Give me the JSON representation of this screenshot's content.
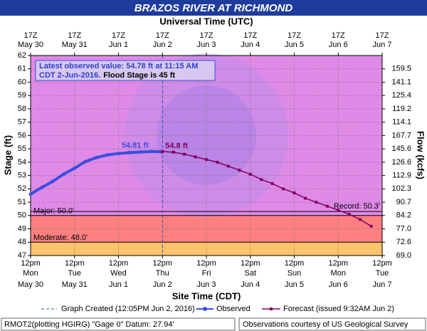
{
  "chart_data": {
    "type": "line",
    "title": "BRAZOS RIVER AT RICHMOND",
    "top_axis_title": "Universal Time (UTC)",
    "x_title": "Site Time (CDT)",
    "y_title": "Stage (ft)",
    "y2_title": "Flow (kcfs)",
    "xlim": [
      "2016-05-30T12:00",
      "2016-06-07T12:00"
    ],
    "xticks": [
      {
        "value": "2016-05-30T12:00",
        "label": "12pm",
        "day": "Mon",
        "date": "May 30",
        "utc": "17Z"
      },
      {
        "value": "2016-05-31T12:00",
        "label": "12pm",
        "day": "Tue",
        "date": "May 31",
        "utc": "17Z"
      },
      {
        "value": "2016-06-01T12:00",
        "label": "12pm",
        "day": "Wed",
        "date": "Jun 1",
        "utc": "17Z"
      },
      {
        "value": "2016-06-02T12:00",
        "label": "12pm",
        "day": "Thu",
        "date": "Jun 2",
        "utc": "17Z"
      },
      {
        "value": "2016-06-03T12:00",
        "label": "12pm",
        "day": "Fri",
        "date": "Jun 3",
        "utc": "17Z"
      },
      {
        "value": "2016-06-04T12:00",
        "label": "12pm",
        "day": "Sat",
        "date": "Jun 4",
        "utc": "17Z"
      },
      {
        "value": "2016-06-05T12:00",
        "label": "12pm",
        "day": "Sun",
        "date": "Jun 5",
        "utc": "17Z"
      },
      {
        "value": "2016-06-06T12:00",
        "label": "12pm",
        "day": "Mon",
        "date": "Jun 6",
        "utc": "17Z"
      },
      {
        "value": "2016-06-07T12:00",
        "label": "12pm",
        "day": "Tue",
        "date": "Jun 7",
        "utc": "17Z"
      }
    ],
    "ylim": [
      47,
      62
    ],
    "yticks": [
      47,
      48,
      49,
      50,
      51,
      52,
      53,
      54,
      55,
      56,
      57,
      58,
      59,
      60,
      61,
      62
    ],
    "rating": [
      {
        "stage": 47,
        "flow": "69.0"
      },
      {
        "stage": 48,
        "flow": "72.6"
      },
      {
        "stage": 49,
        "flow": "77.0"
      },
      {
        "stage": 50,
        "flow": "84.2"
      },
      {
        "stage": 51,
        "flow": "90.7"
      },
      {
        "stage": 52,
        "flow": "102.3"
      },
      {
        "stage": 53,
        "flow": "112.9"
      },
      {
        "stage": 54,
        "flow": "126.6"
      },
      {
        "stage": 55,
        "flow": "145.6"
      },
      {
        "stage": 56,
        "flow": "167.7"
      },
      {
        "stage": 57,
        "flow": "114.1"
      },
      {
        "stage": 58,
        "flow": "119.2"
      },
      {
        "stage": 59,
        "flow": "125.4"
      },
      {
        "stage": 60,
        "flow": "141.1"
      },
      {
        "stage": 61,
        "flow": "159.5"
      }
    ],
    "grid": true,
    "below_color": "#fcc46c",
    "thresholds": [
      {
        "label": "Moderate: 48.0'",
        "value": 48,
        "color": "#ff8080"
      },
      {
        "label": "Major: 50.0'",
        "value": 50,
        "color": "#e08ae8"
      }
    ],
    "record": {
      "label": "Record: 50.3'",
      "value": 50.3
    },
    "graph_created": {
      "x": "2016-06-02T12:05",
      "label": "Graph Created (12:05PM Jun 2, 2016)",
      "color": "#3355cc"
    },
    "series": [
      {
        "name": "Observed",
        "color": "#3a4fe0",
        "x": [
          "2016-05-30T12:00",
          "2016-05-30T18:00",
          "2016-05-31T00:00",
          "2016-05-31T06:00",
          "2016-05-31T12:00",
          "2016-05-31T18:00",
          "2016-06-01T00:00",
          "2016-06-01T06:00",
          "2016-06-01T12:00",
          "2016-06-01T18:00",
          "2016-06-02T00:00",
          "2016-06-02T06:00",
          "2016-06-02T11:15"
        ],
        "values": [
          51.6,
          52.1,
          52.55,
          53.1,
          53.55,
          54.05,
          54.35,
          54.55,
          54.65,
          54.72,
          54.76,
          54.81,
          54.78
        ],
        "value_labels": [
          null,
          null,
          null,
          null,
          null,
          null,
          null,
          null,
          null,
          null,
          null,
          "54.81 ft",
          null
        ]
      },
      {
        "name": "Forecast (issued 9:32AM Jun 2)",
        "color": "#800060",
        "x": [
          "2016-06-02T12:00",
          "2016-06-02T18:00",
          "2016-06-03T00:00",
          "2016-06-03T06:00",
          "2016-06-03T12:00",
          "2016-06-03T18:00",
          "2016-06-04T00:00",
          "2016-06-04T06:00",
          "2016-06-04T12:00",
          "2016-06-04T18:00",
          "2016-06-05T00:00",
          "2016-06-05T06:00",
          "2016-06-05T12:00",
          "2016-06-05T18:00",
          "2016-06-06T00:00",
          "2016-06-06T06:00",
          "2016-06-06T12:00",
          "2016-06-06T18:00",
          "2016-06-07T00:00",
          "2016-06-07T06:00"
        ],
        "values": [
          54.8,
          54.75,
          54.6,
          54.4,
          54.2,
          54.0,
          53.7,
          53.4,
          53.1,
          52.7,
          52.4,
          52.0,
          51.7,
          51.3,
          51.0,
          50.7,
          50.4,
          50.1,
          49.7,
          49.2
        ],
        "value_labels": [
          "54.8 ft",
          null,
          null,
          null,
          null,
          null,
          null,
          null,
          null,
          null,
          null,
          null,
          null,
          null,
          null,
          null,
          null,
          null,
          null,
          null
        ]
      }
    ],
    "info": {
      "line1": "Latest observed value: 54.78 ft at 11:15 AM",
      "line2": "CDT 2-Jun-2016.",
      "flood_stage": "Flood Stage is 45 ft"
    },
    "footer": {
      "left": "RMOT2(plotting HGIRG) \"Gage 0\" Datum: 27.94'",
      "right": "Observations courtesy of US Geological Survey"
    }
  }
}
